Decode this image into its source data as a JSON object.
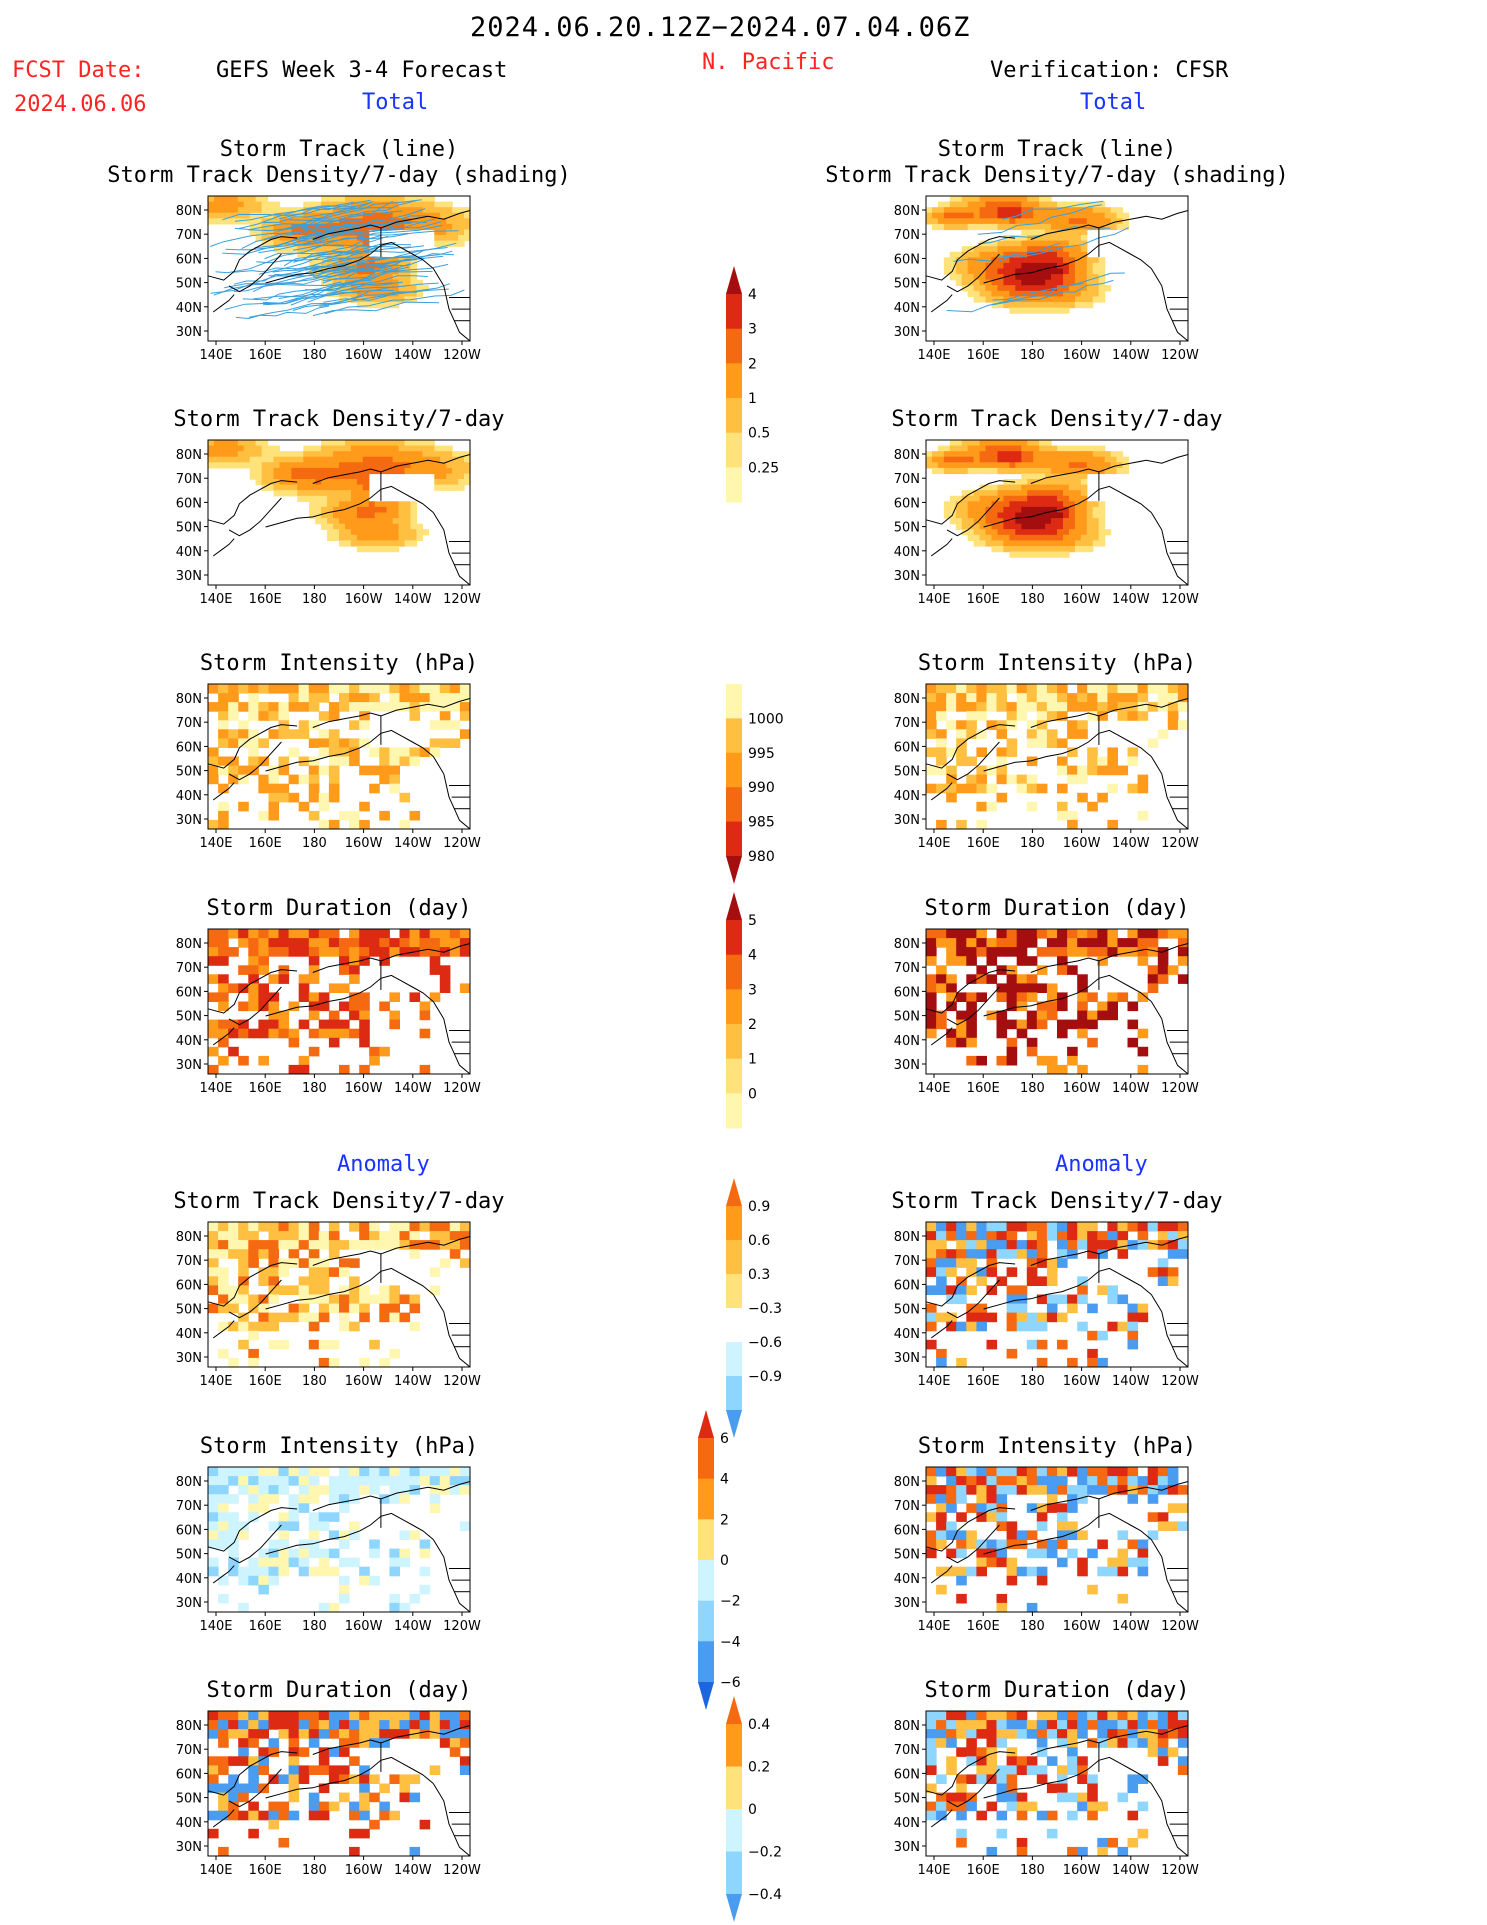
{
  "header": {
    "time_range": "2024.06.20.12Z−2024.07.04.06Z",
    "region": "N. Pacific",
    "fcst_label": "FCST Date:",
    "fcst_date": "2024.06.06",
    "left_title": "GEFS Week 3-4 Forecast",
    "right_title": "Verification: CFSR",
    "total_label": "Total",
    "anomaly_label": "Anomaly"
  },
  "colors": {
    "warm": [
      "#fff6b0",
      "#ffe27a",
      "#ffbf40",
      "#ff9a1a",
      "#f56a10",
      "#dd2a12",
      "#a50e0e"
    ],
    "cool": [
      "#cdf4ff",
      "#8fd6ff",
      "#4a9cf0",
      "#1c66e0"
    ],
    "track_line": "#3aa0dc",
    "coast": "#000000"
  },
  "map_axes": {
    "x_ticks": [
      "140E",
      "160E",
      "180",
      "160W",
      "140W",
      "120W"
    ],
    "y_ticks": [
      "80N",
      "70N",
      "60N",
      "50N",
      "40N",
      "30N"
    ]
  },
  "panels": [
    {
      "id": "fc-track",
      "title1": "Storm Track (line)",
      "title2": "Storm Track Density/7-day (shading)",
      "lines": true,
      "field": {
        "kind": "blob",
        "seed": 1,
        "scale": 1.4
      }
    },
    {
      "id": "ob-track",
      "title1": "Storm Track (line)",
      "title2": "Storm Track Density/7-day (shading)",
      "lines": true,
      "field": {
        "kind": "blob",
        "seed": 2,
        "scale": 2.2
      }
    },
    {
      "id": "fc-dens",
      "title1": "Storm Track Density/7-day",
      "title2": "",
      "lines": false,
      "field": {
        "kind": "blob",
        "seed": 1,
        "scale": 1.4
      }
    },
    {
      "id": "ob-dens",
      "title1": "Storm Track Density/7-day",
      "title2": "",
      "lines": false,
      "field": {
        "kind": "blob",
        "seed": 2,
        "scale": 2.2
      }
    },
    {
      "id": "fc-int",
      "title1": "Storm Intensity (hPa)",
      "title2": "",
      "lines": false,
      "field": {
        "kind": "block",
        "seed": 3,
        "palette": "int"
      }
    },
    {
      "id": "ob-int",
      "title1": "Storm Intensity (hPa)",
      "title2": "",
      "lines": false,
      "field": {
        "kind": "block",
        "seed": 4,
        "palette": "int"
      }
    },
    {
      "id": "fc-dur",
      "title1": "Storm Duration (day)",
      "title2": "",
      "lines": false,
      "field": {
        "kind": "block",
        "seed": 5,
        "palette": "dur"
      }
    },
    {
      "id": "ob-dur",
      "title1": "Storm Duration (day)",
      "title2": "",
      "lines": false,
      "field": {
        "kind": "block",
        "seed": 6,
        "palette": "dur2"
      }
    },
    {
      "id": "fc-adens",
      "title1": "Storm Track Density/7-day",
      "title2": "",
      "lines": false,
      "field": {
        "kind": "block",
        "seed": 7,
        "palette": "anom1"
      }
    },
    {
      "id": "ob-adens",
      "title1": "Storm Track Density/7-day",
      "title2": "",
      "lines": false,
      "field": {
        "kind": "block",
        "seed": 8,
        "palette": "anom2"
      }
    },
    {
      "id": "fc-aint",
      "title1": "Storm Intensity (hPa)",
      "title2": "",
      "lines": false,
      "field": {
        "kind": "block",
        "seed": 9,
        "palette": "anomcool"
      }
    },
    {
      "id": "ob-aint",
      "title1": "Storm Intensity (hPa)",
      "title2": "",
      "lines": false,
      "field": {
        "kind": "block",
        "seed": 10,
        "palette": "anom2"
      }
    },
    {
      "id": "fc-adur",
      "title1": "Storm Duration (day)",
      "title2": "",
      "lines": false,
      "field": {
        "kind": "block",
        "seed": 11,
        "palette": "anomwarm"
      }
    },
    {
      "id": "ob-adur",
      "title1": "Storm Duration (day)",
      "title2": "",
      "lines": false,
      "field": {
        "kind": "block",
        "seed": 12,
        "palette": "anom2"
      }
    }
  ],
  "colorbars": [
    {
      "id": "cb-density",
      "labels": [
        "4",
        "3",
        "2",
        "1",
        "0.5",
        "0.25"
      ],
      "colors": [
        "#a50e0e",
        "#dd2a12",
        "#f56a10",
        "#ff9a1a",
        "#ffbf40",
        "#ffe27a",
        "#fff6b0"
      ],
      "arrow_top": true,
      "arrow_bottom": false
    },
    {
      "id": "cb-intensity",
      "labels": [
        "1000",
        "995",
        "990",
        "985",
        "980"
      ],
      "colors": [
        "#fff6b0",
        "#ffbf40",
        "#ff9a1a",
        "#f56a10",
        "#dd2a12",
        "#a50e0e"
      ],
      "arrow_top": false,
      "arrow_bottom": true
    },
    {
      "id": "cb-duration",
      "labels": [
        "5",
        "4",
        "3",
        "2",
        "1",
        "0"
      ],
      "colors": [
        "#a50e0e",
        "#dd2a12",
        "#f56a10",
        "#ff9a1a",
        "#ffbf40",
        "#ffe27a",
        "#fff6b0"
      ],
      "arrow_top": true,
      "arrow_bottom": false
    },
    {
      "id": "cb-anom-dens",
      "labels": [
        "0.9",
        "0.6",
        "0.3",
        "−0.3",
        "−0.6",
        "−0.9"
      ],
      "colors": [
        "#f56a10",
        "#ff9a1a",
        "#ffbf40",
        "#ffe27a",
        "#ffffff",
        "#cdf4ff",
        "#8fd6ff",
        "#4a9cf0"
      ],
      "arrow_top": true,
      "arrow_bottom": true
    },
    {
      "id": "cb-anom-int",
      "labels": [
        "6",
        "4",
        "2",
        "0",
        "−2",
        "−4",
        "−6"
      ],
      "colors": [
        "#dd2a12",
        "#f56a10",
        "#ff9a1a",
        "#ffe27a",
        "#cdf4ff",
        "#8fd6ff",
        "#4a9cf0",
        "#1c66e0"
      ],
      "arrow_top": true,
      "arrow_bottom": true
    },
    {
      "id": "cb-anom-dur",
      "labels": [
        "0.4",
        "0.2",
        "0",
        "−0.2",
        "−0.4"
      ],
      "colors": [
        "#f56a10",
        "#ff9a1a",
        "#ffe27a",
        "#cdf4ff",
        "#8fd6ff",
        "#4a9cf0"
      ],
      "arrow_top": true,
      "arrow_bottom": true
    }
  ]
}
